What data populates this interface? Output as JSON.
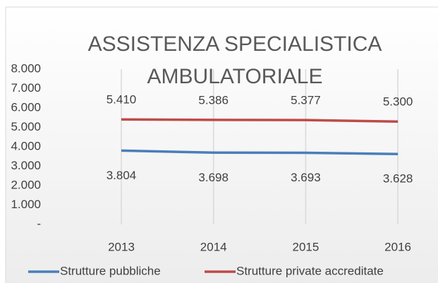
{
  "chart_data": {
    "type": "line",
    "title": "ASSISTENZA SPECIALISTICA AMBULATORIALE",
    "categories": [
      "2013",
      "2014",
      "2015",
      "2016"
    ],
    "series": [
      {
        "name": "Strutture pubbliche",
        "color": "#4a7ebb",
        "values": [
          3804,
          3698,
          3693,
          3628
        ],
        "value_labels": [
          "3.804",
          "3.698",
          "3.693",
          "3.628"
        ]
      },
      {
        "name": "Strutture private accreditate",
        "color": "#be4b48",
        "values": [
          5410,
          5386,
          5377,
          5300
        ],
        "value_labels": [
          "5.410",
          "5.386",
          "5.377",
          "5.300"
        ]
      }
    ],
    "ylim": [
      0,
      8000
    ],
    "yticks": [
      {
        "value": 0,
        "label": "-"
      },
      {
        "value": 1000,
        "label": "1.000"
      },
      {
        "value": 2000,
        "label": "2.000"
      },
      {
        "value": 3000,
        "label": "3.000"
      },
      {
        "value": 4000,
        "label": "4.000"
      },
      {
        "value": 5000,
        "label": "5.000"
      },
      {
        "value": 6000,
        "label": "6.000"
      },
      {
        "value": 7000,
        "label": "7.000"
      },
      {
        "value": 8000,
        "label": "8.000"
      }
    ],
    "grid": true,
    "legend": "bottom"
  }
}
